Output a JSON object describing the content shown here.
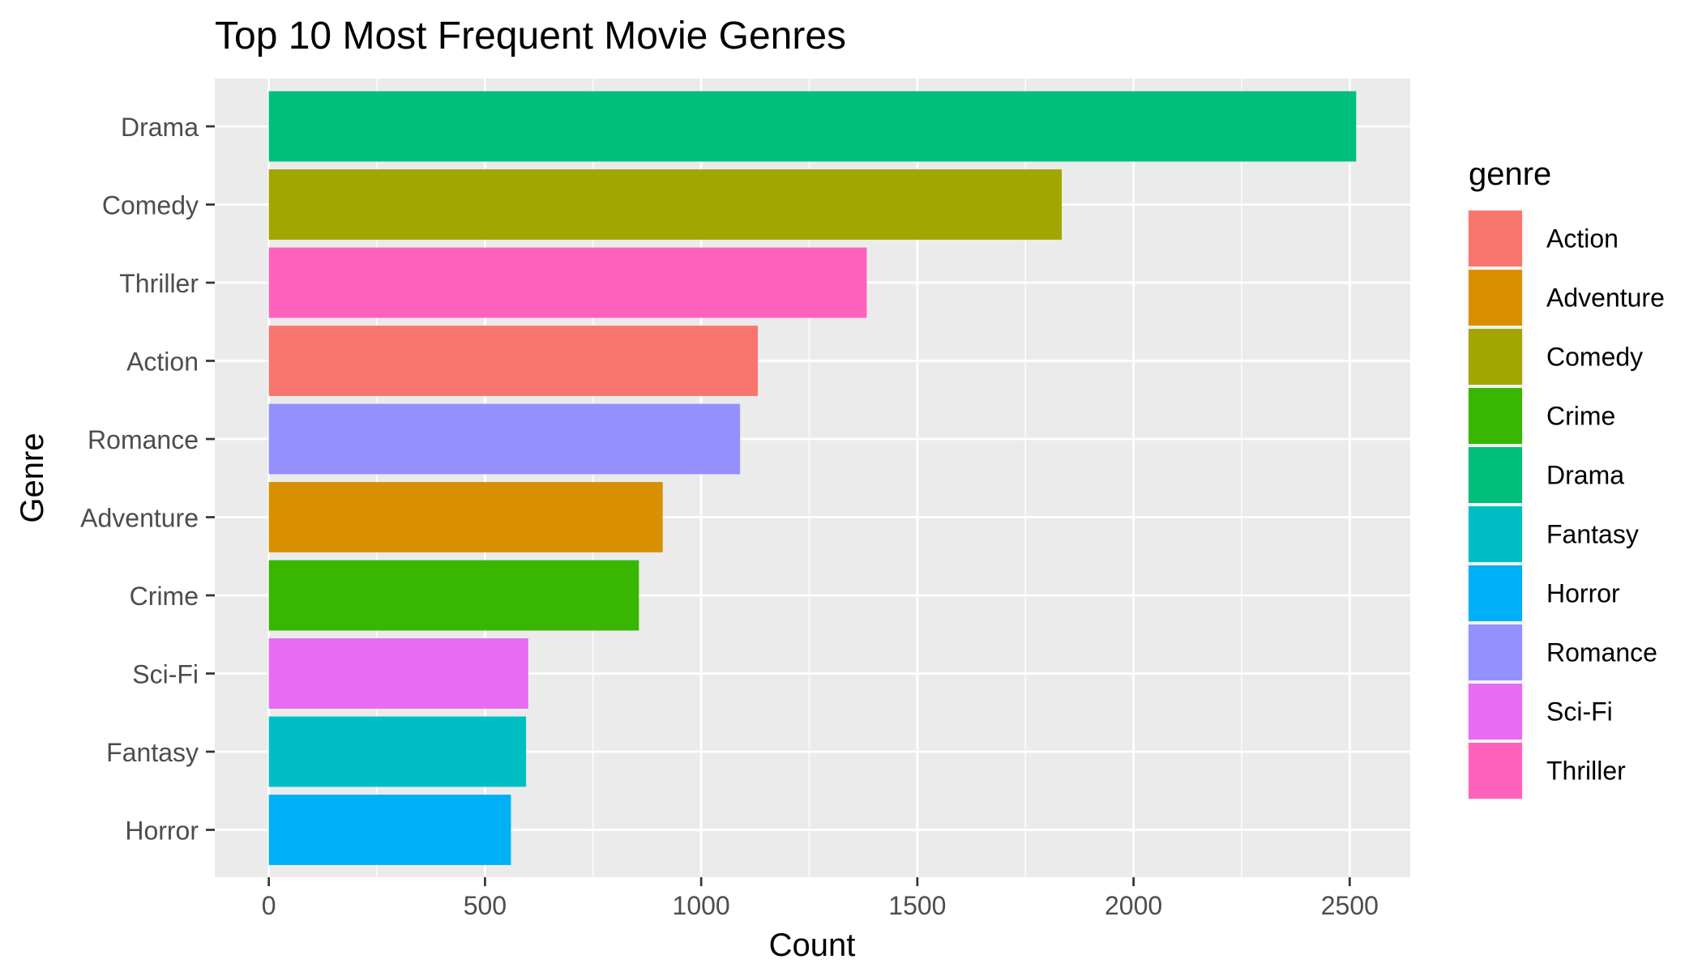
{
  "chart_data": {
    "type": "bar",
    "orientation": "horizontal",
    "title": "Top 10 Most Frequent Movie Genres",
    "xlabel": "Count",
    "ylabel": "Genre",
    "xlim": [
      -125,
      2640
    ],
    "xticks": [
      0,
      500,
      1000,
      1500,
      2000,
      2500
    ],
    "xtick_labels": [
      "0",
      "500",
      "1000",
      "1500",
      "2000",
      "2500"
    ],
    "grid": true,
    "legend_title": "genre",
    "legend_position": "right",
    "categories": [
      "Drama",
      "Comedy",
      "Thriller",
      "Action",
      "Romance",
      "Adventure",
      "Crime",
      "Sci-Fi",
      "Fantasy",
      "Horror"
    ],
    "values": [
      2515,
      1834,
      1383,
      1131,
      1090,
      911,
      856,
      600,
      595,
      560
    ],
    "legend": [
      {
        "name": "Action",
        "color": "#F8766D"
      },
      {
        "name": "Adventure",
        "color": "#D89000"
      },
      {
        "name": "Comedy",
        "color": "#A3A500"
      },
      {
        "name": "Crime",
        "color": "#39B600"
      },
      {
        "name": "Drama",
        "color": "#00BF7D"
      },
      {
        "name": "Fantasy",
        "color": "#00BFC4"
      },
      {
        "name": "Horror",
        "color": "#00B0F6"
      },
      {
        "name": "Romance",
        "color": "#9590FF"
      },
      {
        "name": "Sci-Fi",
        "color": "#E76BF3"
      },
      {
        "name": "Thriller",
        "color": "#FF62BC"
      }
    ]
  }
}
